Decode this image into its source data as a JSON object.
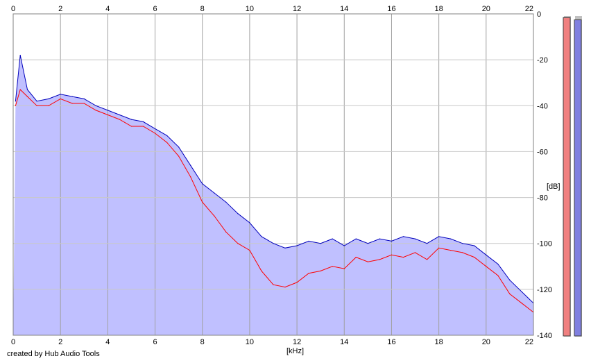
{
  "caption": "created by Hub Audio Tools",
  "chart_data": {
    "type": "line",
    "xlabel": "[kHz]",
    "ylabel": "[dB]",
    "xlim": [
      0,
      22
    ],
    "ylim": [
      -140,
      0
    ],
    "x_ticks": [
      "0",
      "2",
      "4",
      "6",
      "8",
      "10",
      "12",
      "14",
      "16",
      "18",
      "20",
      "22"
    ],
    "y_ticks": [
      "0",
      "-20",
      "-40",
      "-60",
      "-80",
      "-100",
      "-120",
      "-140"
    ],
    "grid": true,
    "series": [
      {
        "color": "#ff0000",
        "x": [
          0.1,
          0.3,
          0.6,
          1.0,
          1.5,
          2.0,
          2.5,
          3.0,
          3.5,
          4.0,
          4.5,
          5.0,
          5.5,
          6.0,
          6.5,
          7.0,
          7.5,
          8.0,
          8.5,
          9.0,
          9.5,
          10.0,
          10.5,
          11.0,
          11.5,
          12.0,
          12.5,
          13.0,
          13.5,
          14.0,
          14.5,
          15.0,
          15.5,
          16.0,
          16.5,
          17.0,
          17.5,
          18.0,
          18.5,
          19.0,
          19.5,
          20.0,
          20.5,
          21.0,
          21.5,
          22.0
        ],
        "y": [
          -40,
          -33,
          -36,
          -40,
          -40,
          -37,
          -39,
          -39,
          -42,
          -44,
          -46,
          -49,
          -49,
          -52,
          -56,
          -62,
          -71,
          -82,
          -88,
          -95,
          -100,
          -103,
          -112,
          -118,
          -119,
          -117,
          -113,
          -112,
          -110,
          -111,
          -106,
          -108,
          -107,
          -105,
          -106,
          -104,
          -107,
          -102,
          -103,
          -104,
          -106,
          -110,
          -114,
          -122,
          -126,
          -130
        ]
      },
      {
        "color": "#0000bb",
        "x": [
          0.1,
          0.3,
          0.6,
          1.0,
          1.5,
          2.0,
          2.5,
          3.0,
          3.5,
          4.0,
          4.5,
          5.0,
          5.5,
          6.0,
          6.5,
          7.0,
          7.5,
          8.0,
          8.5,
          9.0,
          9.5,
          10.0,
          10.5,
          11.0,
          11.5,
          12.0,
          12.5,
          13.0,
          13.5,
          14.0,
          14.5,
          15.0,
          15.5,
          16.0,
          16.5,
          17.0,
          17.5,
          18.0,
          18.5,
          19.0,
          19.5,
          20.0,
          20.5,
          21.0,
          21.5,
          22.0
        ],
        "y": [
          -38,
          -18,
          -33,
          -38,
          -37,
          -35,
          -36,
          -37,
          -40,
          -42,
          -44,
          -46,
          -47,
          -50,
          -53,
          -58,
          -66,
          -74,
          -78,
          -82,
          -87,
          -91,
          -97,
          -100,
          -102,
          -101,
          -99,
          -100,
          -98,
          -101,
          -98,
          -100,
          -98,
          -99,
          -97,
          -98,
          -100,
          -97,
          -98,
          -100,
          -101,
          -105,
          -109,
          -116,
          -121,
          -126
        ]
      }
    ],
    "meters": [
      {
        "color": "#f08080",
        "value": -1
      },
      {
        "color": "#8080e0",
        "value": -2
      }
    ]
  }
}
